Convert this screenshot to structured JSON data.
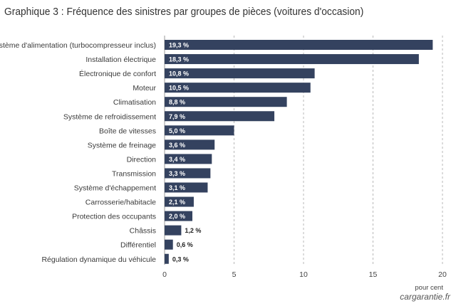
{
  "title": "Graphique  3 : Fréquence des sinistres par groupes de pièces (voitures d'occasion)",
  "source": "cargarantie.fr",
  "chart_data": {
    "type": "bar",
    "orientation": "horizontal",
    "title": "Graphique  3 : Fréquence des sinistres par groupes de pièces (voitures d'occasion)",
    "xlabel": "pour cent",
    "ylabel": "",
    "xlim": [
      0,
      20
    ],
    "xticks": [
      0,
      5,
      10,
      15,
      20
    ],
    "grid": "vertical dashed",
    "bar_color": "#34425f",
    "categories": [
      "Système d'alimentation (turbocompresseur inclus)",
      "Installation électrique",
      "Électronique de confort",
      "Moteur",
      "Climatisation",
      "Système de refroidissement",
      "Boîte de vitesses",
      "Système de freinage",
      "Direction",
      "Transmission",
      "Système d'échappement",
      "Carrosserie/habitacle",
      "Protection des occupants",
      "Châssis",
      "Différentiel",
      "Régulation dynamique du véhicule"
    ],
    "values": [
      19.3,
      18.3,
      10.8,
      10.5,
      8.8,
      7.9,
      5.0,
      3.6,
      3.4,
      3.3,
      3.1,
      2.1,
      2.0,
      1.2,
      0.6,
      0.3
    ],
    "value_labels": [
      "19,3 %",
      "18,3 %",
      "10,8 %",
      "10,5 %",
      "8,8 %",
      "7,9 %",
      "5,0 %",
      "3,6 %",
      "3,4 %",
      "3,3 %",
      "3,1 %",
      "2,1 %",
      "2,0 %",
      "1,2 %",
      "0,6 %",
      "0,3 %"
    ]
  }
}
